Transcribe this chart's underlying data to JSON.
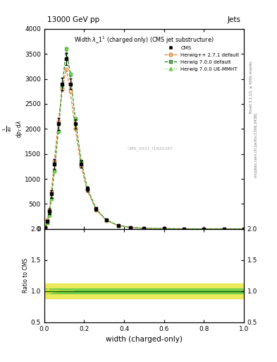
{
  "title": "13000 GeV pp",
  "title_right": "Jets",
  "cms_label": "CMS_2021_I1920187",
  "xlabel": "width (charged-only)",
  "ylabel_ratio": "Ratio to CMS",
  "rivet_label": "Rivet 3.1.10, ≥ 400k events",
  "mcplots_label": "mcplots.cern.ch [arXiv:1306.3436]",
  "xlim": [
    0,
    1
  ],
  "ylim_main": [
    0,
    4000
  ],
  "ylim_ratio": [
    0.5,
    2.0
  ],
  "yticks_main": [
    0,
    500,
    1000,
    1500,
    2000,
    2500,
    3000,
    3500,
    4000
  ],
  "yticks_ratio": [
    0.5,
    1.0,
    1.5,
    2.0
  ],
  "cms_x": [
    0.005,
    0.015,
    0.025,
    0.035,
    0.05,
    0.07,
    0.09,
    0.11,
    0.13,
    0.155,
    0.185,
    0.215,
    0.26,
    0.31,
    0.37,
    0.43,
    0.5,
    0.6,
    0.7,
    0.8,
    0.9,
    1.0
  ],
  "cms_y": [
    30,
    150,
    350,
    700,
    1300,
    2100,
    2900,
    3400,
    2900,
    2100,
    1300,
    800,
    400,
    180,
    70,
    30,
    12,
    5,
    2,
    1,
    0,
    0
  ],
  "cms_yerr": [
    10,
    30,
    50,
    80,
    100,
    120,
    130,
    120,
    110,
    90,
    70,
    50,
    30,
    15,
    8,
    5,
    3,
    2,
    1,
    0.5,
    0.5,
    0.5
  ],
  "h271_x": [
    0.005,
    0.015,
    0.025,
    0.035,
    0.05,
    0.07,
    0.09,
    0.11,
    0.13,
    0.155,
    0.185,
    0.215,
    0.26,
    0.31,
    0.37,
    0.43,
    0.5,
    0.6,
    0.7,
    0.8,
    0.9,
    1.0
  ],
  "h271_y": [
    40,
    180,
    380,
    750,
    1350,
    2150,
    2800,
    3200,
    2750,
    2000,
    1250,
    770,
    380,
    170,
    65,
    28,
    11,
    4,
    2,
    1,
    0,
    0
  ],
  "h700_x": [
    0.005,
    0.015,
    0.025,
    0.035,
    0.05,
    0.07,
    0.09,
    0.11,
    0.13,
    0.155,
    0.185,
    0.215,
    0.26,
    0.31,
    0.37,
    0.43,
    0.5,
    0.6,
    0.7,
    0.8,
    0.9,
    1.0
  ],
  "h700_y": [
    25,
    120,
    280,
    600,
    1150,
    1950,
    2850,
    3600,
    3100,
    2200,
    1350,
    820,
    400,
    180,
    70,
    30,
    12,
    5,
    2,
    1,
    0,
    0
  ],
  "h700ue_x": [
    0.005,
    0.015,
    0.025,
    0.035,
    0.05,
    0.07,
    0.09,
    0.11,
    0.13,
    0.155,
    0.185,
    0.215,
    0.26,
    0.31,
    0.37,
    0.43,
    0.5,
    0.6,
    0.7,
    0.8,
    0.9,
    1.0
  ],
  "h700ue_y": [
    25,
    120,
    280,
    600,
    1150,
    1960,
    2860,
    3620,
    3120,
    2210,
    1360,
    825,
    402,
    182,
    71,
    31,
    12,
    5,
    2,
    1,
    0,
    0
  ],
  "color_cms": "#000000",
  "color_h271": "#e08030",
  "color_h700": "#207820",
  "color_h700ue": "#70d050",
  "color_ratio_yellow": "#e8e840",
  "color_ratio_green": "#40c040"
}
